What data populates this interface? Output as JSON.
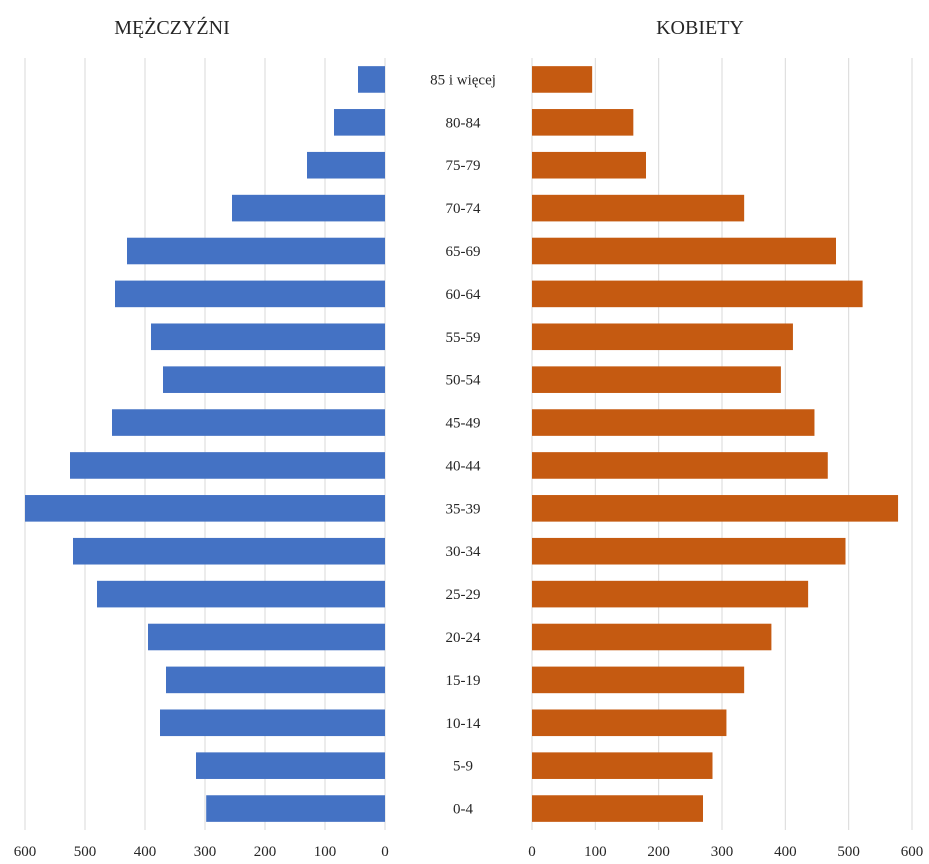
{
  "chart_data": {
    "type": "bar",
    "subtype": "population-pyramid",
    "orientation": "horizontal",
    "categories": [
      "85 i więcej",
      "80-84",
      "75-79",
      "70-74",
      "65-69",
      "60-64",
      "55-59",
      "50-54",
      "45-49",
      "40-44",
      "35-39",
      "30-34",
      "25-29",
      "20-24",
      "15-19",
      "10-14",
      "5-9",
      "0-4"
    ],
    "series": [
      {
        "name": "MĘŻCZYŹNI",
        "color": "#4472c4",
        "values": [
          45,
          85,
          130,
          255,
          430,
          450,
          390,
          370,
          455,
          525,
          600,
          520,
          480,
          395,
          365,
          375,
          315,
          298
        ],
        "xlim": [
          0,
          600
        ],
        "ticks": [
          600,
          500,
          400,
          300,
          200,
          100,
          0
        ],
        "direction": "reversed"
      },
      {
        "name": "KOBIETY",
        "color": "#c55a11",
        "values": [
          95,
          160,
          180,
          335,
          480,
          522,
          412,
          393,
          446,
          467,
          578,
          495,
          436,
          378,
          335,
          307,
          285,
          270
        ],
        "xlim": [
          0,
          600
        ],
        "ticks": [
          0,
          100,
          200,
          300,
          400,
          500,
          600
        ],
        "direction": "normal"
      }
    ],
    "grid": true,
    "legend": "none"
  }
}
